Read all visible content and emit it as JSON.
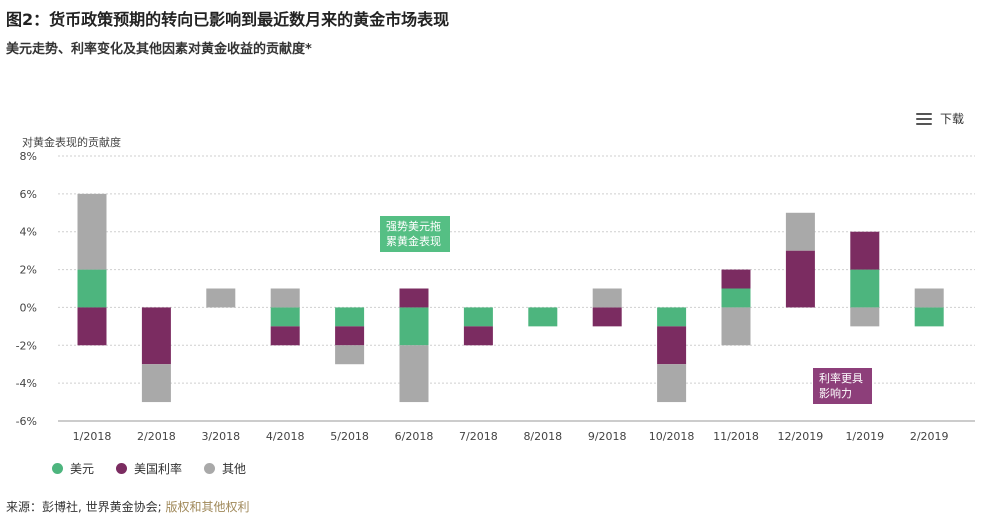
{
  "header": {
    "title": "图2：货币政策预期的转向已影响到最近数月来的黄金市场表现",
    "subtitle": "美元走势、利率变化及其他因素对黄金收益的贡献度*"
  },
  "toolbar": {
    "download_label": "下载",
    "menu_icon": "hamburger-menu-icon"
  },
  "source": {
    "prefix": "来源：",
    "text": "彭博社, 世界黄金协会; ",
    "link": "版权和其他权利"
  },
  "colors": {
    "usd": "#4db57e",
    "rates": "#7b2c61",
    "other": "#a9a9a9",
    "annot_green": "#55bf84",
    "annot_purple": "#8d3f7a"
  },
  "annotations": [
    {
      "text_line1": "强势美元拖",
      "text_line2": "累黄金表现"
    },
    {
      "text_line1": "利率更具",
      "text_line2": "影响力"
    }
  ],
  "chart_data": {
    "type": "bar",
    "stacked": true,
    "ylabel": "对黄金表现的贡献度",
    "ylim": [
      -6,
      8
    ],
    "yticks": [
      8,
      6,
      4,
      2,
      0,
      -2,
      -4,
      -6
    ],
    "ytick_labels": [
      "8%",
      "6%",
      "4%",
      "2%",
      "0%",
      "-2%",
      "-4%",
      "-6%"
    ],
    "grid": true,
    "legend_position": "bottom-left",
    "categories": [
      "1/2018",
      "2/2018",
      "3/2018",
      "4/2018",
      "5/2018",
      "6/2018",
      "7/2018",
      "8/2018",
      "9/2018",
      "10/2018",
      "11/2018",
      "12/2019",
      "1/2019",
      "2/2019"
    ],
    "series": [
      {
        "name": "美元",
        "values": [
          2,
          0,
          0,
          -1,
          -1,
          -2,
          -1,
          -1,
          0,
          -1,
          1,
          0,
          2,
          -1
        ]
      },
      {
        "name": "美国利率",
        "values": [
          -2,
          -3,
          0,
          -1,
          -1,
          1,
          -1,
          0,
          -1,
          -2,
          1,
          3,
          2,
          0
        ]
      },
      {
        "name": "其他",
        "values": [
          4,
          -2,
          1,
          1,
          -1,
          -3,
          0,
          0,
          1,
          -2,
          -2,
          2,
          -1,
          1
        ]
      }
    ]
  }
}
